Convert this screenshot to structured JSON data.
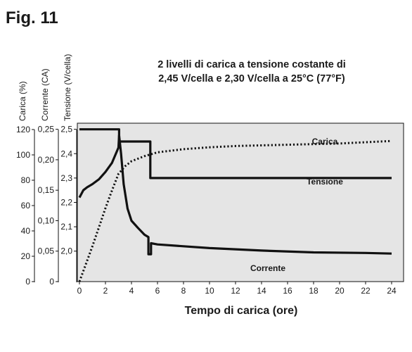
{
  "figure_label": "Fig. 11",
  "chart_data": {
    "type": "line",
    "title_lines": [
      "2 livelli di carica a tensione costante di",
      "2,45 V/cella e 2,30 V/cella a 25°C (77°F)"
    ],
    "xlabel": "Tempo di carica (ore)",
    "xlim": [
      0,
      24
    ],
    "x_ticks": [
      "0",
      "2",
      "4",
      "6",
      "8",
      "10",
      "12",
      "14",
      "16",
      "18",
      "20",
      "22",
      "24"
    ],
    "y_axes": [
      {
        "label": "Carica (%)",
        "ylim": [
          0,
          125
        ],
        "ticks": [
          "0",
          "20",
          "40",
          "60",
          "80",
          "100",
          "120"
        ]
      },
      {
        "label": "Corrente (CA)",
        "ylim": [
          0,
          0.26
        ],
        "ticks": [
          "0",
          "0,05",
          "0,10",
          "0,15",
          "0,20",
          "0,25"
        ]
      },
      {
        "label": "Tensione (V/cella)",
        "ylim": [
          1.875,
          2.525
        ],
        "ticks": [
          "2,0",
          "2,1",
          "2,2",
          "2,3",
          "2,4",
          "2,5"
        ]
      }
    ],
    "background_color": "#e5e5e5",
    "line_color": "#111111",
    "series": [
      {
        "name": "Carica",
        "axis": "Carica (%)",
        "style": "dotted",
        "x": [
          0,
          0.5,
          1,
          1.5,
          2,
          2.5,
          3,
          3.5,
          4,
          5,
          6,
          8,
          10,
          12,
          14,
          16,
          18,
          20,
          22,
          24
        ],
        "y": [
          0,
          14,
          28,
          43,
          58,
          72,
          85,
          91,
          95,
          99,
          102,
          104.5,
          106,
          107,
          107.5,
          108,
          108.5,
          109,
          110,
          111
        ]
      },
      {
        "name": "Tensione",
        "axis": "Tensione (V/cella)",
        "style": "solid",
        "x": [
          0,
          3.05,
          3.05,
          5.45,
          5.45,
          24
        ],
        "y": [
          2.5,
          2.5,
          2.45,
          2.45,
          2.3,
          2.3
        ]
      },
      {
        "name": "Corrente",
        "axis": "Corrente (CA)",
        "style": "solid",
        "x": [
          0,
          0.3,
          0.6,
          1,
          1.5,
          2,
          2.5,
          3,
          3.05,
          3.2,
          3.4,
          3.7,
          4,
          4.5,
          5,
          5.3,
          5.3,
          5.5,
          5.5,
          6,
          8,
          10,
          14,
          18,
          22,
          24
        ],
        "y": [
          0.138,
          0.15,
          0.155,
          0.16,
          0.168,
          0.18,
          0.195,
          0.22,
          0.24,
          0.21,
          0.16,
          0.12,
          0.1,
          0.088,
          0.077,
          0.073,
          0.045,
          0.045,
          0.063,
          0.061,
          0.058,
          0.055,
          0.051,
          0.048,
          0.047,
          0.046
        ]
      }
    ]
  }
}
